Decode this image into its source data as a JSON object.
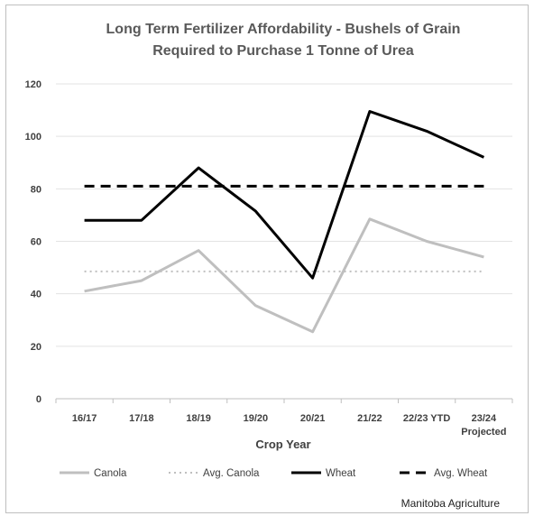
{
  "chart_data": {
    "type": "line",
    "title_lines": [
      "Long Term Fertilizer Affordability - Bushels of Grain",
      "Required to Purchase 1 Tonne of Urea"
    ],
    "xlabel": "Crop Year",
    "ylabel": "",
    "categories": [
      "16/17",
      "17/18",
      "18/19",
      "19/20",
      "20/21",
      "21/22",
      "22/23 YTD",
      "23/24 Projected"
    ],
    "category_label_lines": [
      [
        "16/17"
      ],
      [
        "17/18"
      ],
      [
        "18/19"
      ],
      [
        "19/20"
      ],
      [
        "20/21"
      ],
      [
        "21/22"
      ],
      [
        "22/23 YTD"
      ],
      [
        "23/24",
        "Projected"
      ]
    ],
    "ylim": [
      0,
      120
    ],
    "yticks": [
      0,
      20,
      40,
      60,
      80,
      100,
      120
    ],
    "grid": true,
    "legend_position": "bottom",
    "series": [
      {
        "name": "Canola",
        "style": "solid",
        "color": "#bfbfbf",
        "values": [
          41,
          45,
          56.5,
          35.5,
          25.5,
          68.5,
          60,
          54
        ]
      },
      {
        "name": "Avg. Canola",
        "style": "dotted",
        "color": "#bfbfbf",
        "values": [
          48.5,
          48.5,
          48.5,
          48.5,
          48.5,
          48.5,
          48.5,
          48.5
        ]
      },
      {
        "name": "Wheat",
        "style": "solid",
        "color": "#000000",
        "values": [
          68,
          68,
          88,
          71.5,
          46,
          109.5,
          102,
          92
        ]
      },
      {
        "name": "Avg. Wheat",
        "style": "dashed",
        "color": "#000000",
        "values": [
          81,
          81,
          81,
          81,
          81,
          81,
          81,
          81
        ]
      }
    ]
  },
  "source_note": "Manitoba Agriculture"
}
